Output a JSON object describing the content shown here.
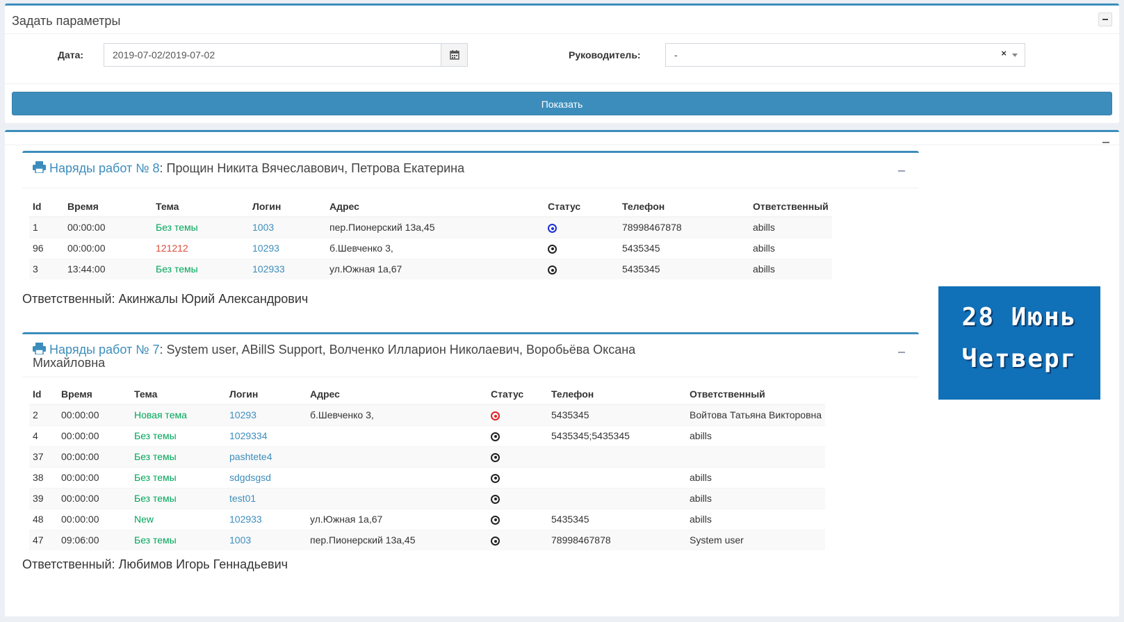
{
  "params": {
    "title": "Задать параметры",
    "date_label": "Дата:",
    "date_value": "2019-07-02/2019-07-02",
    "manager_label": "Руководитель:",
    "manager_value": "-",
    "clear_symbol": "×",
    "show_button": "Показать"
  },
  "colors": {
    "accent": "#3c8dbc",
    "green_text": "#00a65a",
    "red_text": "#dd4b39",
    "date_card_bg": "#1070b8"
  },
  "date_card": {
    "day_month": "28 Июнь",
    "weekday": "Четверг"
  },
  "columns_8": [
    "Id",
    "Время",
    "Тема",
    "Логин",
    "Адрес",
    "Статус",
    "Телефон",
    "Ответственный"
  ],
  "columns_7": [
    "Id",
    "Время",
    "Тема",
    "Логин",
    "Адрес",
    "Статус",
    "Телефон",
    "Ответственный"
  ],
  "orders": [
    {
      "title_link": "Наряды работ № 8",
      "title_rest": ": Прощин Никита Вячеславович, Петрова Екатерина",
      "rows": [
        {
          "id": "1",
          "time": "00:00:00",
          "topic": "Без темы",
          "topic_color": "green",
          "login": "1003",
          "address": "пер.Пионерский 13а,45",
          "status": "blue",
          "phone": "78998467878",
          "responsible": "abills"
        },
        {
          "id": "96",
          "time": "00:00:00",
          "topic": "121212",
          "topic_color": "red",
          "login": "10293",
          "address": "б.Шевченко 3,",
          "status": "black",
          "phone": "5435345",
          "responsible": "abills"
        },
        {
          "id": "3",
          "time": "13:44:00",
          "topic": "Без темы",
          "topic_color": "green",
          "login": "102933",
          "address": "ул.Южная 1а,67",
          "status": "black",
          "phone": "5435345",
          "responsible": "abills"
        }
      ],
      "footer": "Ответственный: Акинжалы Юрий Александрович"
    },
    {
      "title_link": "Наряды работ № 7",
      "title_rest": ": System user, ABillS Support, Волченко Илларион Николаевич, Воробьёва Оксана Михайловна",
      "rows": [
        {
          "id": "2",
          "time": "00:00:00",
          "topic": "Новая тема",
          "topic_color": "green",
          "login": "10293",
          "address": "б.Шевченко 3,",
          "status": "red",
          "phone": "5435345",
          "responsible": "Войтова Татьяна Викторовна"
        },
        {
          "id": "4",
          "time": "00:00:00",
          "topic": "Без темы",
          "topic_color": "green",
          "login": "1029334",
          "address": "",
          "status": "black",
          "phone": "5435345;5435345",
          "responsible": "abills"
        },
        {
          "id": "37",
          "time": "00:00:00",
          "topic": "Без темы",
          "topic_color": "green",
          "login": "pashtete4",
          "address": "",
          "status": "black",
          "phone": "",
          "responsible": ""
        },
        {
          "id": "38",
          "time": "00:00:00",
          "topic": "Без темы",
          "topic_color": "green",
          "login": "sdgdsgsd",
          "address": "",
          "status": "black",
          "phone": "",
          "responsible": "abills"
        },
        {
          "id": "39",
          "time": "00:00:00",
          "topic": "Без темы",
          "topic_color": "green",
          "login": "test01",
          "address": "",
          "status": "black",
          "phone": "",
          "responsible": "abills"
        },
        {
          "id": "48",
          "time": "00:00:00",
          "topic": "New",
          "topic_color": "green",
          "login": "102933",
          "address": "ул.Южная 1а,67",
          "status": "black",
          "phone": "5435345",
          "responsible": "abills"
        },
        {
          "id": "47",
          "time": "09:06:00",
          "topic": "Без темы",
          "topic_color": "green",
          "login": "1003",
          "address": "пер.Пионерский 13а,45",
          "status": "black",
          "phone": "78998467878",
          "responsible": "System user"
        }
      ],
      "footer": "Ответственный: Любимов Игорь Геннадьевич"
    }
  ]
}
